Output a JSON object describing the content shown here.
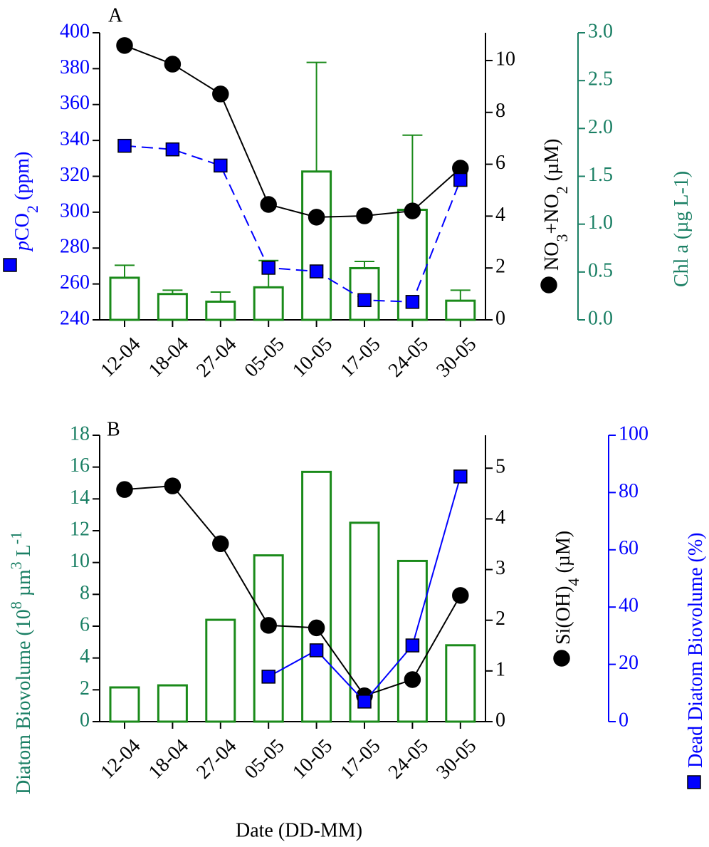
{
  "chart_data": [
    {
      "type": "bar_line",
      "panel_label": "A",
      "categories": [
        "12-04",
        "18-04",
        "27-04",
        "05-05",
        "10-05",
        "17-05",
        "24-05",
        "30-05"
      ],
      "y_label": [
        "p",
        "CO",
        "2",
        " (ppm)"
      ],
      "ylim": [
        240,
        400
      ],
      "yticks": [
        240,
        260,
        280,
        300,
        320,
        340,
        360,
        380,
        400
      ],
      "ycolor": "#0000ff",
      "y2_label": [
        "NO",
        "3",
        "+NO",
        "2",
        " (µM)"
      ],
      "y2lim": [
        0,
        11.07
      ],
      "y2ticks": [
        0,
        2,
        4,
        6,
        8,
        10
      ],
      "y2color": "#000000",
      "y3_label": [
        "Chl a (µg L-1)"
      ],
      "y3lim": [
        0,
        3
      ],
      "y3color": "#1a7f64",
      "y3ticks": [
        {
          "value": 0,
          "label": "0.0"
        },
        {
          "value": 0.5,
          "label": "0.5"
        },
        {
          "value": 1,
          "label": "1.0"
        },
        {
          "value": 1.5,
          "label": "1.5"
        },
        {
          "value": 2,
          "label": "2.0"
        },
        {
          "value": 2.5,
          "label": "2.5"
        },
        {
          "value": 3,
          "label": "3.0"
        }
      ],
      "series": [
        {
          "kind": "bar",
          "axis": "y3",
          "color": "#1a8a1a",
          "values": [
            0.44,
            0.27,
            0.19,
            0.34,
            1.55,
            0.54,
            1.15,
            0.2
          ],
          "errors": [
            0.13,
            0.04,
            0.1,
            0.28,
            1.14,
            0.07,
            0.78,
            0.11
          ]
        },
        {
          "kind": "line",
          "axis": "y2",
          "color": "#000000",
          "marker": "circle",
          "linestyle": "solid",
          "values": [
            10.58,
            9.86,
            8.71,
            4.45,
            3.96,
            4.01,
            4.2,
            5.85
          ]
        },
        {
          "kind": "line",
          "axis": "y",
          "color": "#0000ff",
          "marker": "square",
          "linestyle": "dashed",
          "values": [
            337,
            335,
            326,
            269,
            267,
            251,
            250,
            318
          ]
        }
      ]
    },
    {
      "type": "bar_line",
      "panel_label": "B",
      "x_label": "Date (DD-MM)",
      "categories": [
        "12-04",
        "18-04",
        "27-04",
        "05-05",
        "10-05",
        "17-05",
        "24-05",
        "30-05"
      ],
      "y_label": [
        "Diatom Biovolume (10",
        "8",
        " µm",
        "3",
        " L",
        "-1"
      ],
      "ylim": [
        0,
        18
      ],
      "yticks": [
        0,
        2,
        4,
        6,
        8,
        10,
        12,
        14,
        16,
        18
      ],
      "ycolor": "#1a7f64",
      "y2_label": [
        "Si(OH)",
        "4",
        " (µM)"
      ],
      "y2lim": [
        0,
        5.65
      ],
      "y2ticks": [
        0,
        1,
        2,
        3,
        4,
        5
      ],
      "y2color": "#000000",
      "y3_label": [
        "Dead Diatom Biovolume (%)"
      ],
      "y3lim": [
        0,
        100
      ],
      "y3ticks": [
        0,
        20,
        40,
        60,
        80,
        100
      ],
      "y3color": "#0000ff",
      "series": [
        {
          "kind": "bar",
          "axis": "y",
          "color": "#1a8a1a",
          "values": [
            2.15,
            2.28,
            6.4,
            10.45,
            15.7,
            12.5,
            10.1,
            4.8
          ]
        },
        {
          "kind": "line",
          "axis": "y2",
          "color": "#000000",
          "marker": "circle",
          "linestyle": "solid",
          "values": [
            4.58,
            4.65,
            3.51,
            1.9,
            1.85,
            0.51,
            0.83,
            2.49
          ]
        },
        {
          "kind": "line",
          "axis": "y3",
          "color": "#0000ff",
          "marker": "square",
          "linestyle": "solid",
          "values": [
            null,
            null,
            null,
            15.7,
            24.9,
            7.0,
            26.6,
            85.6
          ]
        }
      ]
    }
  ]
}
